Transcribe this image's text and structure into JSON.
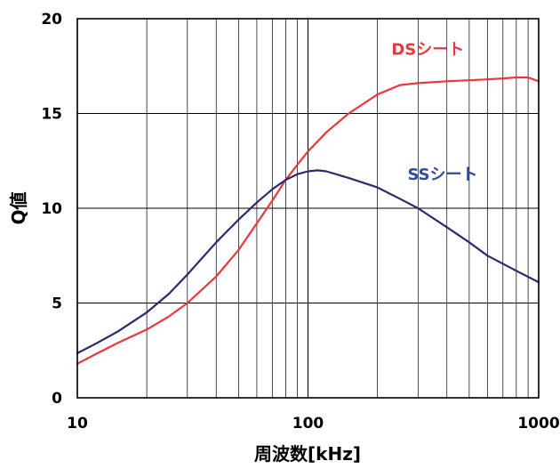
{
  "chart_data": {
    "type": "line",
    "title": "",
    "xlabel": "周波数[kHz]",
    "ylabel": "Q値",
    "xscale": "log",
    "xlim": [
      10,
      1000
    ],
    "ylim": [
      0,
      20
    ],
    "xticks": [
      10,
      100,
      1000
    ],
    "xtick_labels": [
      "10",
      "100",
      "1000"
    ],
    "yticks": [
      0,
      5,
      10,
      15,
      20
    ],
    "ytick_labels": [
      "0",
      "5",
      "10",
      "15",
      "20"
    ],
    "grid": true,
    "legend": "inline labels on chart",
    "series": [
      {
        "name": "DSシート",
        "color": "#e8383d",
        "label_anchor": [
          230,
          18.1
        ],
        "x": [
          10,
          12,
          15,
          20,
          25,
          30,
          40,
          50,
          60,
          70,
          80,
          90,
          100,
          120,
          150,
          200,
          250,
          300,
          400,
          500,
          600,
          700,
          800,
          900,
          1000
        ],
        "y": [
          1.8,
          2.3,
          2.9,
          3.6,
          4.3,
          5.0,
          6.4,
          7.8,
          9.2,
          10.4,
          11.5,
          12.3,
          13.0,
          14.0,
          15.0,
          16.0,
          16.5,
          16.6,
          16.7,
          16.75,
          16.8,
          16.85,
          16.9,
          16.9,
          16.7
        ]
      },
      {
        "name": "SSシート",
        "color": "#2b2a6e",
        "label_color": "#2e4ea1",
        "label_anchor": [
          270,
          11.5
        ],
        "x": [
          10,
          12,
          15,
          20,
          25,
          30,
          40,
          50,
          60,
          70,
          80,
          90,
          100,
          110,
          120,
          150,
          200,
          250,
          300,
          400,
          500,
          600,
          800,
          1000
        ],
        "y": [
          2.35,
          2.85,
          3.5,
          4.5,
          5.5,
          6.5,
          8.2,
          9.4,
          10.3,
          11.0,
          11.5,
          11.8,
          11.95,
          12.0,
          11.95,
          11.6,
          11.1,
          10.5,
          10.0,
          9.0,
          8.2,
          7.5,
          6.7,
          6.1
        ]
      }
    ]
  }
}
